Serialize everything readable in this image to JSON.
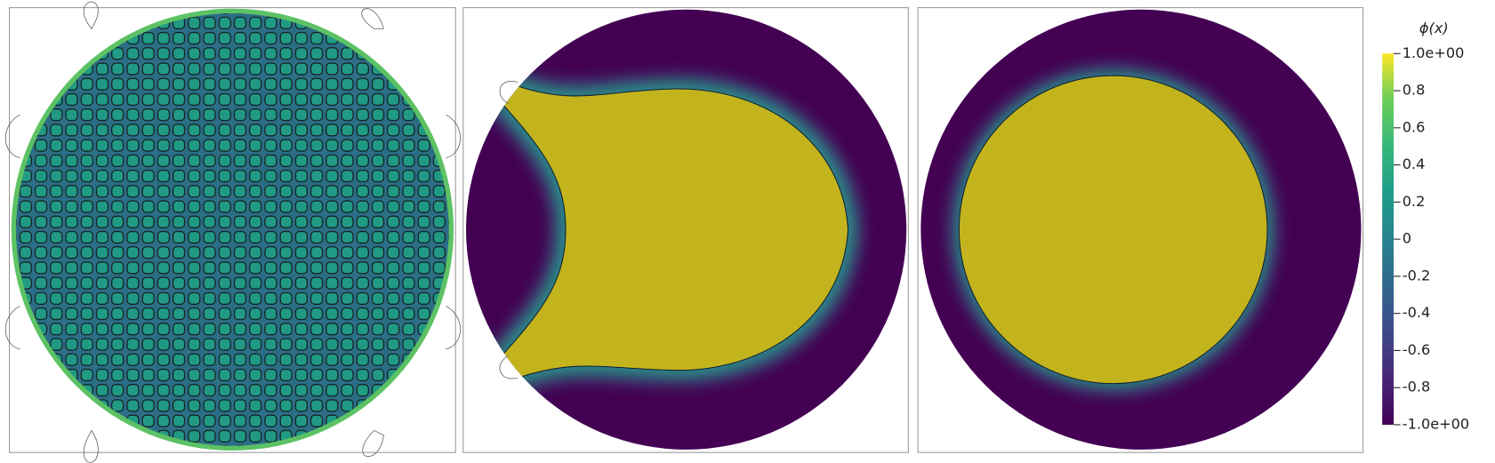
{
  "colorbar": {
    "title": "ϕ(x)",
    "lim": [
      -1,
      1
    ],
    "ticks": [
      {
        "value": 1,
        "label": "1.0e+00"
      },
      0.8,
      0.6,
      0.4,
      0.2,
      0,
      -0.2,
      -0.4,
      -0.6,
      -0.8,
      {
        "value": -1,
        "label": "-1.0e+00"
      }
    ]
  }
}
